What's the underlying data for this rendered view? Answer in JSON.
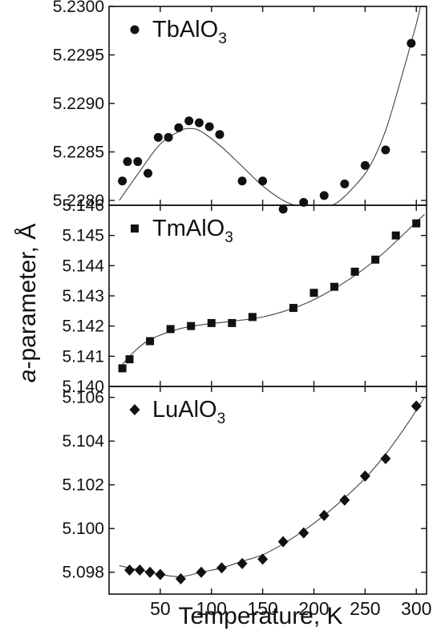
{
  "chart_data": {
    "type": "scatter",
    "xlabel": "Temperature, K",
    "ylabel": "a-parameter, Å",
    "ylabel_italic": "a",
    "ylabel_rest": "-parameter, Å",
    "xlim": [
      0,
      310
    ],
    "xticks": [
      50,
      100,
      150,
      200,
      250,
      300
    ],
    "xtick_labels": [
      "50",
      "100",
      "150",
      "200",
      "250",
      "300"
    ],
    "panels": [
      {
        "compound": "TbAlO",
        "subscript": "3",
        "marker": "circle",
        "ylim": [
          5.22795,
          5.23
        ],
        "yticks": [
          "5.2280",
          "5.2285",
          "5.2290",
          "5.2295",
          "5.2300"
        ],
        "x": [
          13,
          18,
          28,
          38,
          48,
          58,
          68,
          78,
          88,
          98,
          108,
          130,
          150,
          170,
          190,
          210,
          230,
          250,
          270,
          295
        ],
        "y": [
          5.2282,
          5.2284,
          5.2284,
          5.22828,
          5.22865,
          5.22865,
          5.22875,
          5.22882,
          5.2288,
          5.22876,
          5.22868,
          5.2282,
          5.2282,
          5.22791,
          5.22798,
          5.22805,
          5.22817,
          5.22836,
          5.22852,
          5.22962
        ],
        "fit_x": [
          10,
          30,
          50,
          70,
          80,
          90,
          110,
          130,
          150,
          170,
          185,
          200,
          220,
          240,
          255,
          270,
          285,
          300,
          305
        ],
        "fit_y": [
          5.228,
          5.2283,
          5.22858,
          5.22872,
          5.22874,
          5.22871,
          5.22855,
          5.22835,
          5.22815,
          5.228,
          5.22794,
          5.22793,
          5.22796,
          5.22815,
          5.22836,
          5.22872,
          5.22925,
          5.22982,
          5.23005
        ]
      },
      {
        "compound": "TmAlO",
        "subscript": "3",
        "marker": "square",
        "ylim": [
          5.14,
          5.146
        ],
        "yticks": [
          "5.140",
          "5.141",
          "5.142",
          "5.143",
          "5.144",
          "5.145",
          "5.146"
        ],
        "x": [
          13,
          20,
          40,
          60,
          80,
          100,
          120,
          140,
          180,
          200,
          220,
          240,
          260,
          280,
          300
        ],
        "y": [
          5.1406,
          5.1409,
          5.1415,
          5.1419,
          5.142,
          5.1421,
          5.1421,
          5.1423,
          5.1426,
          5.1431,
          5.1433,
          5.1438,
          5.1442,
          5.145,
          5.1454
        ],
        "fit_x": [
          10,
          20,
          35,
          50,
          70,
          90,
          110,
          130,
          150,
          170,
          190,
          210,
          230,
          250,
          270,
          290,
          308
        ],
        "fit_y": [
          5.1406,
          5.141,
          5.14145,
          5.1417,
          5.14192,
          5.14204,
          5.14212,
          5.1422,
          5.1423,
          5.14248,
          5.14272,
          5.14305,
          5.14345,
          5.14392,
          5.14448,
          5.14512,
          5.1457
        ]
      },
      {
        "compound": "LuAlO",
        "subscript": "3",
        "marker": "diamond",
        "ylim": [
          5.097,
          5.1065
        ],
        "yticks": [
          "5.098",
          "5.100",
          "5.102",
          "5.104",
          "5.106"
        ],
        "x": [
          20,
          30,
          40,
          50,
          70,
          90,
          110,
          130,
          150,
          170,
          190,
          210,
          230,
          250,
          270,
          300
        ],
        "y": [
          5.0981,
          5.0981,
          5.098,
          5.0979,
          5.0977,
          5.098,
          5.0982,
          5.0984,
          5.0986,
          5.0994,
          5.0998,
          5.1006,
          5.1013,
          5.1024,
          5.1032,
          5.1056
        ],
        "fit_x": [
          10,
          30,
          50,
          70,
          90,
          110,
          130,
          150,
          170,
          190,
          210,
          230,
          250,
          270,
          290,
          308
        ],
        "fit_y": [
          5.0983,
          5.0981,
          5.0979,
          5.0978,
          5.098,
          5.0982,
          5.0985,
          5.0988,
          5.0993,
          5.0999,
          5.1006,
          5.1014,
          5.1023,
          5.1034,
          5.1047,
          5.106
        ]
      }
    ]
  }
}
